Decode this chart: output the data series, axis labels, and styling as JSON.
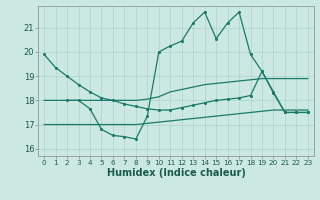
{
  "xlabel": "Humidex (Indice chaleur)",
  "background_color": "#cce8e2",
  "grid_color": "#aad4cc",
  "line_color": "#1a7a6a",
  "xlim": [
    -0.5,
    23.5
  ],
  "ylim": [
    15.7,
    21.9
  ],
  "yticks": [
    16,
    17,
    18,
    19,
    20,
    21
  ],
  "xticks": [
    0,
    1,
    2,
    3,
    4,
    5,
    6,
    7,
    8,
    9,
    10,
    11,
    12,
    13,
    14,
    15,
    16,
    17,
    18,
    19,
    20,
    21,
    22,
    23
  ],
  "line_A_x": [
    0,
    1,
    2,
    3,
    4,
    5,
    6,
    7,
    8,
    9,
    10,
    11,
    12,
    13,
    14,
    15,
    16,
    17,
    18,
    19,
    20,
    21,
    22,
    23
  ],
  "line_A_y": [
    19.9,
    19.35,
    19.0,
    18.65,
    18.35,
    18.1,
    18.0,
    17.85,
    17.75,
    17.65,
    17.6,
    17.6,
    17.7,
    17.8,
    17.9,
    18.0,
    18.05,
    18.1,
    18.2,
    19.2,
    18.35,
    17.5,
    17.5,
    17.5
  ],
  "line_B_x": [
    2,
    3,
    4,
    5,
    6,
    7,
    8,
    9,
    10,
    11,
    12,
    13,
    14,
    15,
    16,
    17,
    18,
    19,
    20,
    21,
    22,
    23
  ],
  "line_B_y": [
    18.0,
    18.0,
    17.65,
    16.8,
    16.55,
    16.5,
    16.4,
    17.35,
    20.0,
    20.25,
    20.45,
    21.2,
    21.65,
    20.55,
    21.2,
    21.65,
    19.9,
    19.2,
    18.3,
    17.5,
    17.5,
    17.5
  ],
  "line_C_x": [
    0,
    1,
    2,
    3,
    4,
    5,
    6,
    7,
    8,
    9,
    10,
    11,
    12,
    13,
    14,
    15,
    16,
    17,
    18,
    19,
    20,
    21,
    22,
    23
  ],
  "line_C_y": [
    18.0,
    18.0,
    18.0,
    18.0,
    18.0,
    18.0,
    18.0,
    18.0,
    18.0,
    18.05,
    18.15,
    18.35,
    18.45,
    18.55,
    18.65,
    18.7,
    18.75,
    18.8,
    18.85,
    18.9,
    18.9,
    18.9,
    18.9,
    18.9
  ],
  "line_D_x": [
    0,
    1,
    2,
    3,
    4,
    5,
    6,
    7,
    8,
    9,
    10,
    11,
    12,
    13,
    14,
    15,
    16,
    17,
    18,
    19,
    20,
    21,
    22,
    23
  ],
  "line_D_y": [
    17.0,
    17.0,
    17.0,
    17.0,
    17.0,
    17.0,
    17.0,
    17.0,
    17.0,
    17.05,
    17.1,
    17.15,
    17.2,
    17.25,
    17.3,
    17.35,
    17.4,
    17.45,
    17.5,
    17.55,
    17.6,
    17.6,
    17.6,
    17.6
  ]
}
